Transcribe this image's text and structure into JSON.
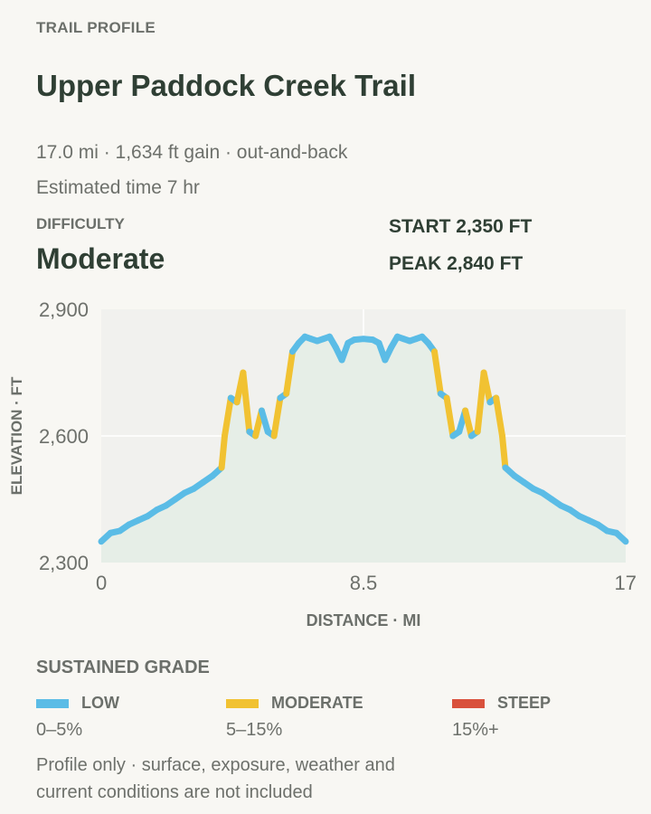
{
  "header": {
    "eyebrow": "TRAIL PROFILE",
    "title": "Upper Paddock Creek Trail",
    "stats": "17.0 mi · 1,634 ft gain · out-and-back",
    "estimated": "Estimated time 7 hr"
  },
  "difficulty": {
    "label": "DIFFICULTY",
    "value": "Moderate"
  },
  "elevation": {
    "start": "START 2,350 FT",
    "peak": "PEAK 2,840 FT"
  },
  "legend": {
    "title": "SUSTAINED GRADE",
    "items": [
      {
        "name": "LOW",
        "range": "0–5%",
        "color": "#5bbce6"
      },
      {
        "name": "MODERATE",
        "range": "5–15%",
        "color": "#f1c232"
      },
      {
        "name": "STEEP",
        "range": "15%+",
        "color": "#d9513c"
      }
    ]
  },
  "note": "Profile only · surface, exposure, weather and current conditions are not included",
  "chart_data": {
    "type": "line",
    "xlabel": "DISTANCE · MI",
    "ylabel": "ELEVATION · FT",
    "xlim": [
      0,
      17
    ],
    "ylim": [
      2300,
      2900
    ],
    "x_ticks": [
      "0",
      "8.5",
      "17"
    ],
    "y_ticks": [
      "2,300",
      "2,600",
      "2,900"
    ],
    "grid": true,
    "fill_color": "#e6eee7",
    "series": [
      {
        "x": [
          0,
          0.3,
          0.6,
          0.9,
          1.2,
          1.5,
          1.8,
          2.1,
          2.4,
          2.7,
          3.0,
          3.3,
          3.6,
          3.9,
          4.0,
          4.2,
          4.4,
          4.6,
          4.8,
          5.0,
          5.2,
          5.4,
          5.6,
          5.8,
          6.0,
          6.2,
          6.4,
          6.6,
          6.8,
          7.0,
          7.2,
          7.4,
          7.6,
          7.8,
          8.0,
          8.2,
          8.5,
          8.8,
          9.0,
          9.2,
          9.4,
          9.6,
          9.8,
          10.0,
          10.2,
          10.4,
          10.6,
          10.8,
          11.0,
          11.2,
          11.4,
          11.6,
          11.8,
          12.0,
          12.2,
          12.4,
          12.6,
          12.8,
          13.0,
          13.1,
          13.4,
          13.7,
          14.0,
          14.3,
          14.6,
          14.9,
          15.2,
          15.5,
          15.8,
          16.1,
          16.4,
          16.7,
          17.0
        ],
        "y": [
          2350,
          2370,
          2375,
          2390,
          2400,
          2410,
          2425,
          2435,
          2450,
          2465,
          2475,
          2490,
          2505,
          2525,
          2600,
          2690,
          2680,
          2750,
          2610,
          2600,
          2660,
          2610,
          2600,
          2690,
          2700,
          2800,
          2820,
          2835,
          2830,
          2825,
          2830,
          2835,
          2810,
          2780,
          2820,
          2828,
          2830,
          2828,
          2820,
          2780,
          2810,
          2835,
          2830,
          2825,
          2830,
          2835,
          2820,
          2800,
          2700,
          2690,
          2600,
          2610,
          2660,
          2600,
          2610,
          2750,
          2680,
          2690,
          2600,
          2525,
          2505,
          2490,
          2475,
          2465,
          2450,
          2435,
          2425,
          2410,
          2400,
          2390,
          2375,
          2370,
          2350
        ]
      }
    ]
  }
}
